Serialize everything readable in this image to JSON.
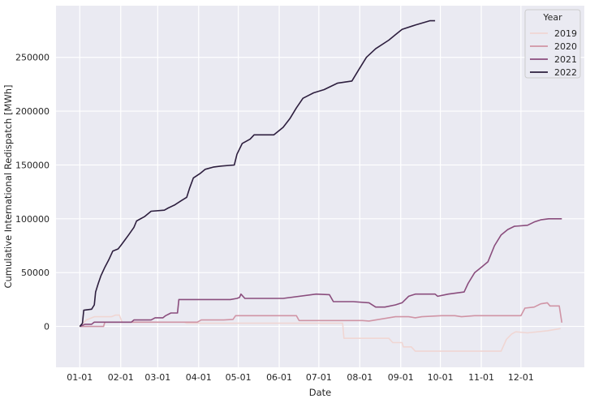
{
  "chart_data": {
    "type": "line",
    "title": "",
    "xlabel": "Date",
    "ylabel": "Cumulative International Redispatch [MWh]",
    "x_ticks": [
      1,
      32,
      60,
      91,
      121,
      152,
      182,
      213,
      244,
      274,
      305,
      335
    ],
    "x_tick_labels": [
      "01-01",
      "02-01",
      "03-01",
      "04-01",
      "05-01",
      "06-01",
      "07-01",
      "08-01",
      "09-01",
      "10-01",
      "11-01",
      "12-01"
    ],
    "y_ticks": [
      0,
      50000,
      100000,
      150000,
      200000,
      250000
    ],
    "y_tick_labels": [
      "0",
      "50000",
      "100000",
      "150000",
      "200000",
      "250000"
    ],
    "xlim": [
      -17,
      383
    ],
    "ylim": [
      -38000,
      298000
    ],
    "grid": true,
    "legend": {
      "title": "Year",
      "placement": "top-right"
    },
    "series": [
      {
        "name": "2019",
        "color": "#f0d6d3",
        "points": [
          [
            1,
            0
          ],
          [
            6,
            6000
          ],
          [
            12,
            9000
          ],
          [
            25,
            9000
          ],
          [
            28,
            10500
          ],
          [
            31,
            10500
          ],
          [
            33,
            4000
          ],
          [
            80,
            4000
          ],
          [
            82,
            3000
          ],
          [
            200,
            3000
          ],
          [
            201,
            -11000
          ],
          [
            235,
            -11000
          ],
          [
            238,
            -15000
          ],
          [
            245,
            -15000
          ],
          [
            246,
            -19000
          ],
          [
            252,
            -19000
          ],
          [
            255,
            -23000
          ],
          [
            320,
            -23000
          ],
          [
            324,
            -12000
          ],
          [
            328,
            -7000
          ],
          [
            331,
            -5000
          ],
          [
            340,
            -6000
          ],
          [
            355,
            -4000
          ],
          [
            365,
            -2000
          ]
        ]
      },
      {
        "name": "2020",
        "color": "#d094a5",
        "points": [
          [
            1,
            0
          ],
          [
            19,
            0
          ],
          [
            20,
            4000
          ],
          [
            90,
            4000
          ],
          [
            93,
            6000
          ],
          [
            110,
            6000
          ],
          [
            117,
            6500
          ],
          [
            119,
            10000
          ],
          [
            155,
            10000
          ],
          [
            165,
            10000
          ],
          [
            167,
            5500
          ],
          [
            215,
            5500
          ],
          [
            220,
            5000
          ],
          [
            240,
            9000
          ],
          [
            250,
            9000
          ],
          [
            255,
            8000
          ],
          [
            260,
            9000
          ],
          [
            275,
            10000
          ],
          [
            285,
            10000
          ],
          [
            290,
            9000
          ],
          [
            300,
            10000
          ],
          [
            335,
            10000
          ],
          [
            338,
            17000
          ],
          [
            345,
            18000
          ],
          [
            350,
            21000
          ],
          [
            355,
            22000
          ],
          [
            357,
            19000
          ],
          [
            364,
            19000
          ],
          [
            366,
            3500
          ]
        ]
      },
      {
        "name": "2021",
        "color": "#8a4d7d",
        "points": [
          [
            1,
            0
          ],
          [
            5,
            2000
          ],
          [
            10,
            2000
          ],
          [
            12,
            4000
          ],
          [
            40,
            4000
          ],
          [
            42,
            6000
          ],
          [
            55,
            6000
          ],
          [
            58,
            8000
          ],
          [
            64,
            8000
          ],
          [
            66,
            10000
          ],
          [
            70,
            12500
          ],
          [
            75,
            12500
          ],
          [
            76,
            25000
          ],
          [
            115,
            25000
          ],
          [
            120,
            26000
          ],
          [
            122,
            27000
          ],
          [
            123,
            30000
          ],
          [
            126,
            26000
          ],
          [
            155,
            26000
          ],
          [
            180,
            30000
          ],
          [
            190,
            29500
          ],
          [
            193,
            23000
          ],
          [
            208,
            23000
          ],
          [
            220,
            22000
          ],
          [
            225,
            18000
          ],
          [
            232,
            18000
          ],
          [
            240,
            20000
          ],
          [
            245,
            22000
          ],
          [
            250,
            28000
          ],
          [
            255,
            30000
          ],
          [
            270,
            30000
          ],
          [
            272,
            28000
          ],
          [
            280,
            30000
          ],
          [
            292,
            32000
          ],
          [
            295,
            40000
          ],
          [
            300,
            50000
          ],
          [
            305,
            55000
          ],
          [
            310,
            60000
          ],
          [
            315,
            75000
          ],
          [
            320,
            85000
          ],
          [
            325,
            90000
          ],
          [
            330,
            93000
          ],
          [
            340,
            94000
          ],
          [
            345,
            97000
          ],
          [
            350,
            99000
          ],
          [
            356,
            100000
          ],
          [
            366,
            100000
          ]
        ]
      },
      {
        "name": "2022",
        "color": "#2d1e3e",
        "points": [
          [
            1,
            0
          ],
          [
            3,
            3000
          ],
          [
            4,
            15000
          ],
          [
            10,
            16000
          ],
          [
            12,
            20000
          ],
          [
            13,
            32000
          ],
          [
            15,
            40000
          ],
          [
            17,
            47000
          ],
          [
            20,
            55000
          ],
          [
            23,
            62000
          ],
          [
            26,
            70000
          ],
          [
            30,
            72000
          ],
          [
            32,
            75000
          ],
          [
            35,
            80000
          ],
          [
            38,
            85000
          ],
          [
            42,
            92000
          ],
          [
            44,
            98000
          ],
          [
            50,
            102000
          ],
          [
            55,
            107000
          ],
          [
            65,
            108000
          ],
          [
            68,
            110000
          ],
          [
            73,
            113000
          ],
          [
            78,
            117000
          ],
          [
            82,
            120000
          ],
          [
            84,
            128000
          ],
          [
            87,
            138000
          ],
          [
            92,
            142000
          ],
          [
            96,
            146000
          ],
          [
            102,
            148000
          ],
          [
            108,
            149000
          ],
          [
            118,
            150000
          ],
          [
            120,
            160000
          ],
          [
            124,
            170000
          ],
          [
            130,
            174000
          ],
          [
            133,
            178000
          ],
          [
            148,
            178000
          ],
          [
            155,
            185000
          ],
          [
            160,
            193000
          ],
          [
            165,
            203000
          ],
          [
            170,
            212000
          ],
          [
            178,
            217000
          ],
          [
            186,
            220000
          ],
          [
            196,
            226000
          ],
          [
            207,
            228000
          ],
          [
            212,
            238000
          ],
          [
            218,
            250000
          ],
          [
            225,
            258000
          ],
          [
            235,
            266000
          ],
          [
            240,
            271000
          ],
          [
            245,
            276000
          ],
          [
            255,
            280000
          ],
          [
            266,
            284000
          ],
          [
            270,
            284000
          ]
        ]
      }
    ]
  }
}
